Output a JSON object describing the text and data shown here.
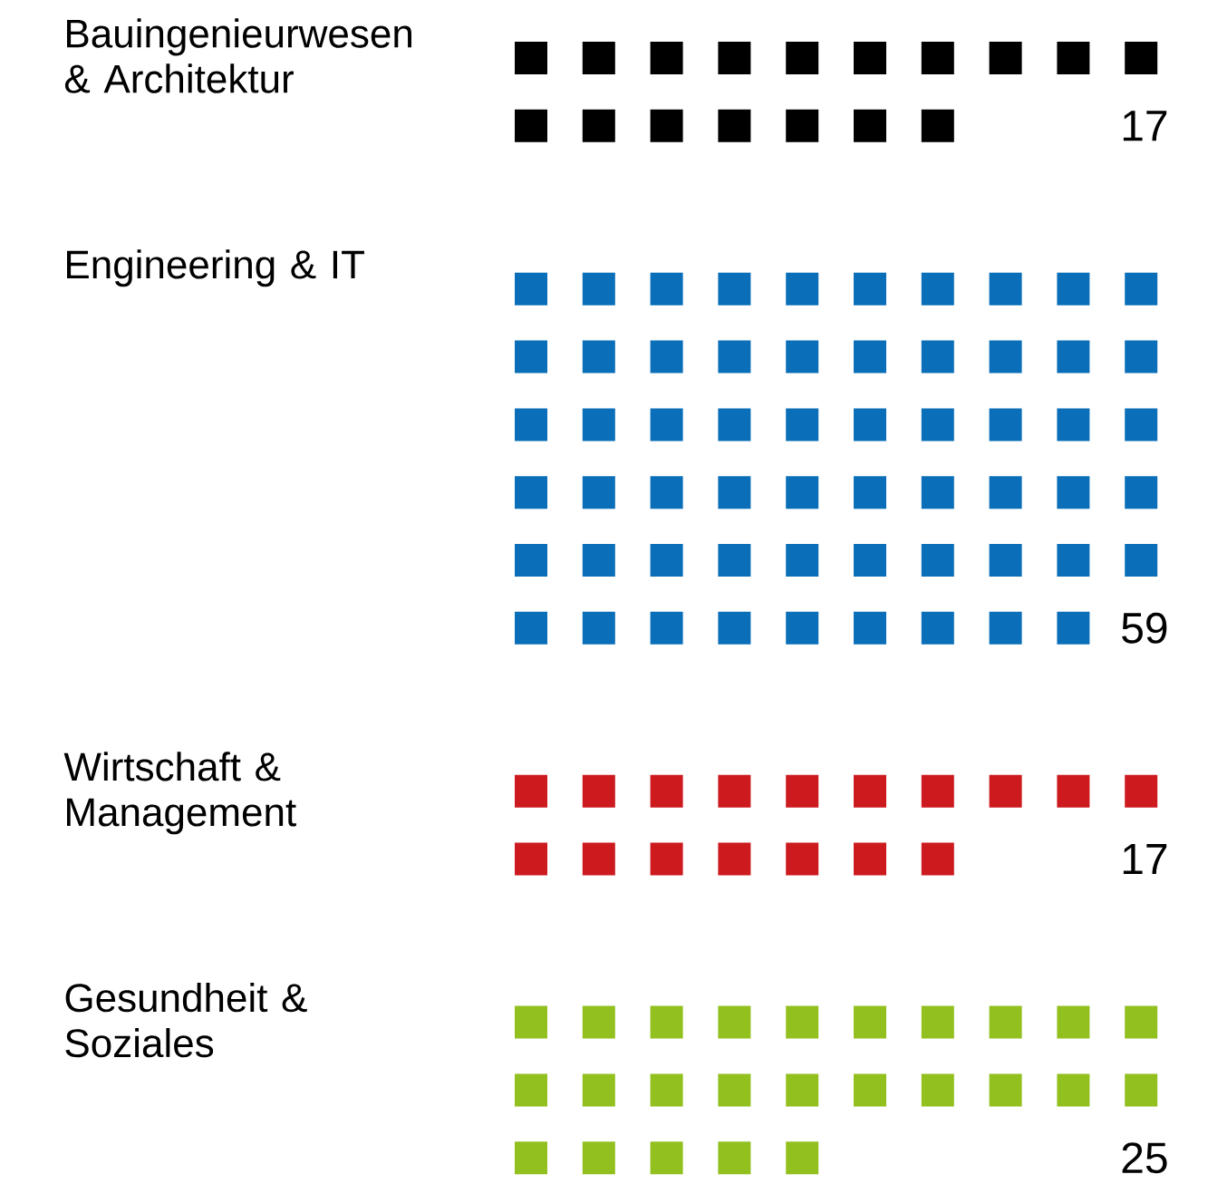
{
  "chart_data": {
    "type": "other",
    "categories": [
      "Bauingenieurwesen & Architektur",
      "Engineering & IT",
      "Wirtschaft & Management",
      "Gesundheit & Soziales"
    ],
    "values": [
      17,
      59,
      17,
      25
    ],
    "colors": [
      "#000000",
      "#0a6fb8",
      "#cc1a1f",
      "#92c01f"
    ],
    "data_labels": true
  }
}
